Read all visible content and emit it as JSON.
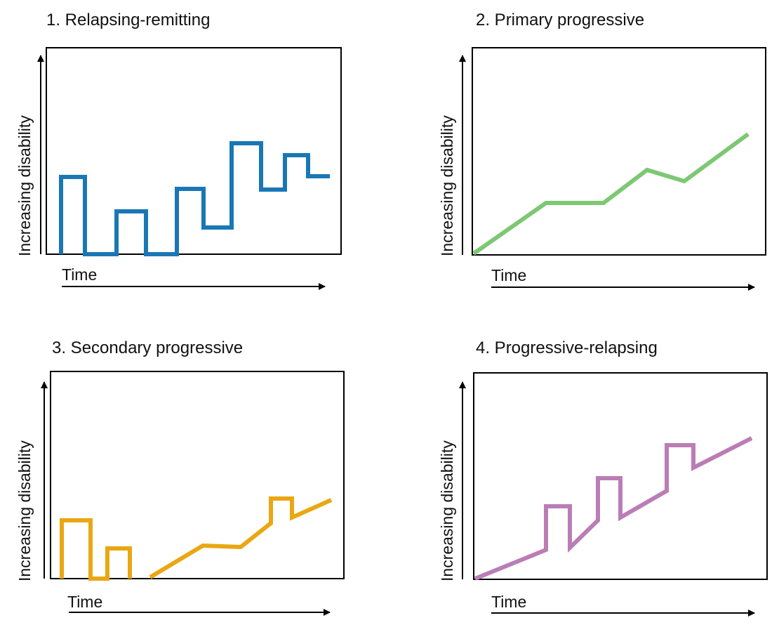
{
  "panels": [
    {
      "title": "1. Relapsing-remitting",
      "ylabel": "Increasing disability",
      "xlabel": "Time",
      "color": "#1a77b6"
    },
    {
      "title": "2. Primary progressive",
      "ylabel": "Increasing disability",
      "xlabel": "Time",
      "color": "#7dc873"
    },
    {
      "title": "3. Secondary progressive",
      "ylabel": "Increasing disability",
      "xlabel": "Time",
      "color": "#e9a712"
    },
    {
      "title": "4. Progressive-relapsing",
      "ylabel": "Increasing disability",
      "xlabel": "Time",
      "color": "#bb7db6"
    }
  ]
}
